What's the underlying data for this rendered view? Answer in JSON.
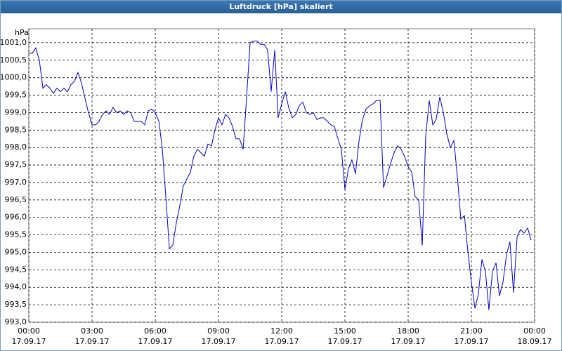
{
  "chart_data": {
    "type": "line",
    "title": "Luftdruck [hPa] skaliert",
    "ylabel": "hPa",
    "x": [
      0,
      0.17,
      0.33,
      0.5,
      0.67,
      0.83,
      1,
      1.17,
      1.33,
      1.5,
      1.67,
      1.83,
      2,
      2.17,
      2.33,
      2.5,
      2.67,
      2.83,
      3,
      3.17,
      3.33,
      3.5,
      3.67,
      3.83,
      4,
      4.17,
      4.33,
      4.5,
      4.67,
      4.83,
      5,
      5.17,
      5.33,
      5.5,
      5.67,
      5.83,
      6,
      6.17,
      6.33,
      6.5,
      6.67,
      6.83,
      7,
      7.17,
      7.33,
      7.5,
      7.67,
      7.83,
      8,
      8.17,
      8.33,
      8.5,
      8.67,
      8.83,
      9,
      9.17,
      9.33,
      9.5,
      9.67,
      9.83,
      10,
      10.17,
      10.33,
      10.5,
      10.67,
      10.83,
      11,
      11.17,
      11.33,
      11.5,
      11.67,
      11.83,
      12,
      12.17,
      12.33,
      12.5,
      12.67,
      12.83,
      13,
      13.17,
      13.33,
      13.5,
      13.67,
      13.83,
      14,
      14.17,
      14.33,
      14.5,
      14.67,
      14.83,
      15,
      15.17,
      15.33,
      15.5,
      15.67,
      15.83,
      16,
      16.17,
      16.33,
      16.5,
      16.67,
      16.83,
      17,
      17.17,
      17.33,
      17.5,
      17.67,
      17.83,
      18,
      18.17,
      18.33,
      18.5,
      18.67,
      18.83,
      19,
      19.17,
      19.33,
      19.5,
      19.67,
      19.83,
      20,
      20.17,
      20.33,
      20.5,
      20.67,
      20.83,
      21,
      21.17,
      21.33,
      21.5,
      21.67,
      21.83,
      22,
      22.17,
      22.33,
      22.5,
      22.67,
      22.83,
      23,
      23.17,
      23.33,
      23.5,
      23.67,
      23.83
    ],
    "series": [
      {
        "color": "#0000c8",
        "values": [
          1000.7,
          1000.7,
          1000.85,
          1000.5,
          999.7,
          999.8,
          999.7,
          999.55,
          999.7,
          999.6,
          999.7,
          999.6,
          999.8,
          999.9,
          1000.15,
          999.85,
          999.4,
          999.0,
          998.65,
          998.65,
          998.75,
          998.95,
          999.05,
          998.95,
          999.15,
          999.0,
          999.05,
          998.95,
          999.05,
          999.0,
          998.75,
          998.75,
          998.75,
          998.65,
          999.05,
          999.1,
          999.0,
          998.75,
          998.0,
          996.6,
          995.1,
          995.2,
          995.85,
          996.35,
          996.9,
          997.1,
          997.3,
          997.75,
          997.95,
          997.85,
          997.75,
          998.1,
          998.05,
          998.5,
          998.85,
          998.65,
          998.95,
          998.85,
          998.6,
          998.25,
          998.25,
          997.95,
          999.4,
          1001.0,
          1001.05,
          1001.05,
          1000.95,
          1000.95,
          1000.8,
          999.6,
          1000.8,
          998.85,
          999.25,
          999.6,
          999.15,
          998.85,
          998.95,
          999.2,
          999.3,
          999.0,
          998.95,
          999.0,
          998.8,
          998.85,
          998.85,
          998.75,
          998.65,
          998.6,
          998.25,
          997.95,
          996.8,
          997.4,
          997.65,
          997.25,
          998.2,
          998.8,
          999.1,
          999.2,
          999.25,
          999.35,
          999.35,
          996.85,
          997.2,
          997.55,
          997.85,
          998.05,
          997.95,
          997.75,
          997.45,
          997.3,
          996.6,
          996.5,
          995.2,
          998.3,
          999.35,
          998.65,
          998.8,
          999.45,
          999.0,
          998.4,
          998.0,
          998.2,
          997.2,
          995.95,
          996.05,
          995.05,
          994.15,
          993.4,
          993.8,
          994.8,
          994.45,
          993.35,
          994.45,
          994.7,
          993.75,
          994.15,
          994.95,
          995.3,
          993.85,
          995.45,
          995.65,
          995.55,
          995.7,
          995.35
        ]
      }
    ],
    "xlim": [
      0,
      24
    ],
    "xticks": [
      {
        "value": 0,
        "label": "00:00\n17.09.17"
      },
      {
        "value": 3,
        "label": "03:00\n17.09.17"
      },
      {
        "value": 6,
        "label": "06:00\n17.09.17"
      },
      {
        "value": 9,
        "label": "09:00\n17.09.17"
      },
      {
        "value": 12,
        "label": "12:00\n17.09.17"
      },
      {
        "value": 15,
        "label": "15:00\n17.09.17"
      },
      {
        "value": 18,
        "label": "18:00\n17.09.17"
      },
      {
        "value": 21,
        "label": "21:00\n17.09.17"
      },
      {
        "value": 24,
        "label": "00:00\n18.09.17"
      }
    ],
    "ylim": [
      993,
      1001.4
    ],
    "yticks": [
      {
        "value": 993,
        "label": "993,0"
      },
      {
        "value": 993.5,
        "label": "993,5"
      },
      {
        "value": 994,
        "label": "994,0"
      },
      {
        "value": 994.5,
        "label": "994,5"
      },
      {
        "value": 995,
        "label": "995,0"
      },
      {
        "value": 995.5,
        "label": "995,5"
      },
      {
        "value": 996,
        "label": "996,0"
      },
      {
        "value": 996.5,
        "label": "996,5"
      },
      {
        "value": 997,
        "label": "997,0"
      },
      {
        "value": 997.5,
        "label": "997,5"
      },
      {
        "value": 998,
        "label": "998,0"
      },
      {
        "value": 998.5,
        "label": "998,5"
      },
      {
        "value": 999,
        "label": "999,0"
      },
      {
        "value": 999.5,
        "label": "999,5"
      },
      {
        "value": 1000,
        "label": "1000,0"
      },
      {
        "value": 1000.5,
        "label": "1000,5"
      },
      {
        "value": 1001,
        "label": "1001,0"
      }
    ],
    "grid": true
  }
}
